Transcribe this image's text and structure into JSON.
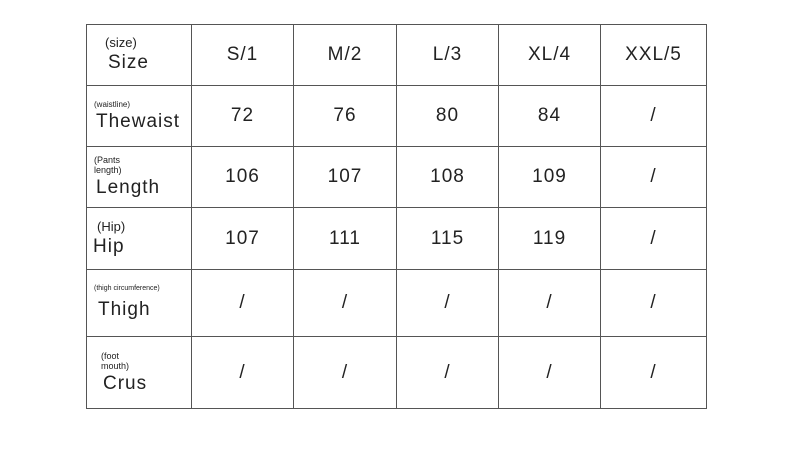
{
  "header": {
    "sub": "(size)",
    "label": "Size",
    "sizes": [
      "S/1",
      "M/2",
      "L/3",
      "XL/4",
      "XXL/5"
    ]
  },
  "rows": [
    {
      "sub": "(waistline)",
      "label": "Thewaist",
      "values": [
        "72",
        "76",
        "80",
        "84",
        "/"
      ]
    },
    {
      "sub": "(Pants length)",
      "label": "Length",
      "values": [
        "106",
        "107",
        "108",
        "109",
        "/"
      ]
    },
    {
      "sub": "(Hip)",
      "label": "Hip",
      "values": [
        "107",
        "111",
        "115",
        "119",
        "/"
      ]
    },
    {
      "sub": "(thigh circumference)",
      "label": "Thigh",
      "values": [
        "/",
        "/",
        "/",
        "/",
        "/"
      ]
    },
    {
      "sub": "(foot mouth)",
      "label": "Crus",
      "values": [
        "/",
        "/",
        "/",
        "/",
        "/"
      ]
    }
  ]
}
